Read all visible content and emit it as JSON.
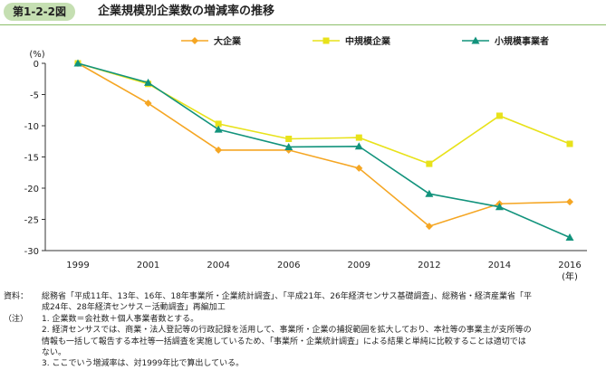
{
  "figure": {
    "label": "第1-2-2図",
    "title": "企業規模別企業数の増減率の推移"
  },
  "chart_data": {
    "type": "line",
    "ylabel": "(%)",
    "xlabel": "(年)",
    "ylim": [
      -30,
      0
    ],
    "yticks": [
      0,
      -5,
      -10,
      -15,
      -20,
      -25,
      -30
    ],
    "categories": [
      "1999",
      "2001",
      "2004",
      "2006",
      "2009",
      "2012",
      "2014",
      "2016"
    ],
    "legend_position": "top",
    "grid": false,
    "series": [
      {
        "name": "大企業",
        "color": "#f5a623",
        "marker": "diamond",
        "values": [
          0,
          -6.4,
          -13.9,
          -13.9,
          -16.8,
          -26.1,
          -22.5,
          -22.2
        ]
      },
      {
        "name": "中規模企業",
        "color": "#e8e21a",
        "marker": "square",
        "values": [
          0,
          -3.3,
          -9.7,
          -12.1,
          -11.9,
          -16.1,
          -8.4,
          -12.9
        ]
      },
      {
        "name": "小規模事業者",
        "color": "#12937c",
        "marker": "triangle",
        "values": [
          0,
          -3.1,
          -10.6,
          -13.4,
          -13.3,
          -20.9,
          -23.0,
          -27.9
        ]
      }
    ]
  },
  "notes": {
    "source_head": "資料：",
    "source_line1": "総務省「平成11年、13年、16年、18年事業所・企業統計調査」、「平成21年、26年経済センサス基礎調査」、総務省・経済産業省「平",
    "source_line2": "成24年、28年経済センサス－活動調査」再編加工",
    "note_head": "（注）",
    "note1": "1. 企業数＝会社数＋個人事業者数とする。",
    "note2_line1": "2. 経済センサスでは、商業・法人登記等の行政記録を活用して、事業所・企業の捕捉範囲を拡大しており、本社等の事業主が支所等の",
    "note2_line2": "情報も一括して報告する本社等一括調査を実施しているため、「事業所・企業統計調査」による結果と単純に比較することは適切では",
    "note2_line3": "ない。",
    "note3": "3. ここでいう増減率は、対1999年比で算出している。"
  }
}
